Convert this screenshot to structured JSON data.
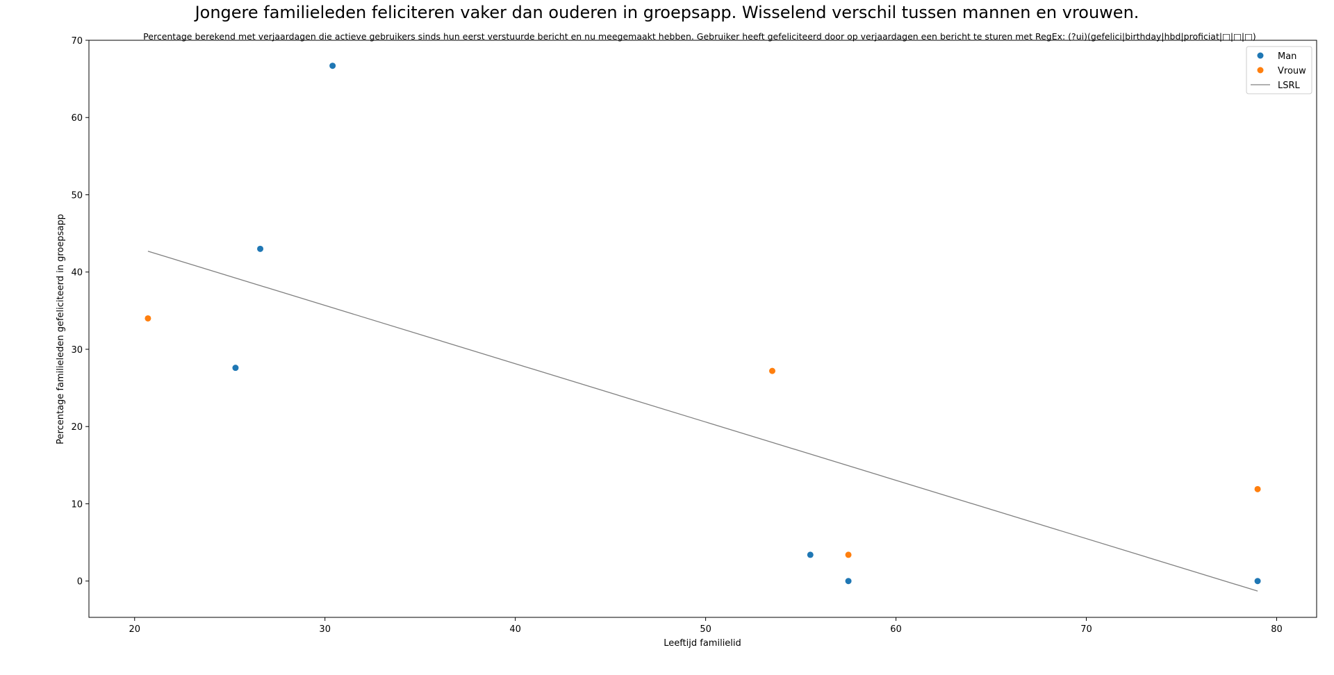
{
  "chart_data": {
    "type": "scatter",
    "title": "Jongere familieleden feliciteren vaker dan ouderen in groepsapp. Wisselend verschil tussen mannen en vrouwen.",
    "subtitle": "Percentage berekend met verjaardagen die actieve gebruikers sinds hun eerst verstuurde bericht en nu meegemaakt hebben. Gebruiker heeft gefeliciteerd door op verjaardagen een bericht te sturen met RegEx: (?ui)(gefelici|birthday|hbd|proficiat|□|□|□)",
    "xlabel": "Leeftijd familielid",
    "ylabel": "Percentage familieleden gefeliciteerd in groepsapp",
    "xlim": [
      17.6,
      82.1
    ],
    "ylim": [
      -4.7,
      70
    ],
    "xticks": [
      20,
      30,
      40,
      50,
      60,
      70,
      80
    ],
    "yticks": [
      0,
      10,
      20,
      30,
      40,
      50,
      60,
      70
    ],
    "grid": false,
    "legend_position": "top-right",
    "series": [
      {
        "name": "Man",
        "color": "#1f77b4",
        "points": [
          {
            "x": 25.3,
            "y": 27.6
          },
          {
            "x": 26.6,
            "y": 43.0
          },
          {
            "x": 30.4,
            "y": 66.7
          },
          {
            "x": 55.5,
            "y": 3.4
          },
          {
            "x": 57.5,
            "y": 0.0
          },
          {
            "x": 79.0,
            "y": 0.0
          }
        ]
      },
      {
        "name": "Vrouw",
        "color": "#ff7f0e",
        "points": [
          {
            "x": 20.7,
            "y": 34.0
          },
          {
            "x": 53.5,
            "y": 27.2
          },
          {
            "x": 57.5,
            "y": 3.4
          },
          {
            "x": 79.0,
            "y": 11.9
          }
        ]
      }
    ],
    "trendline": {
      "name": "LSRL",
      "color": "#808080",
      "x": [
        20.7,
        79.0
      ],
      "y": [
        42.7,
        -1.3
      ]
    }
  }
}
